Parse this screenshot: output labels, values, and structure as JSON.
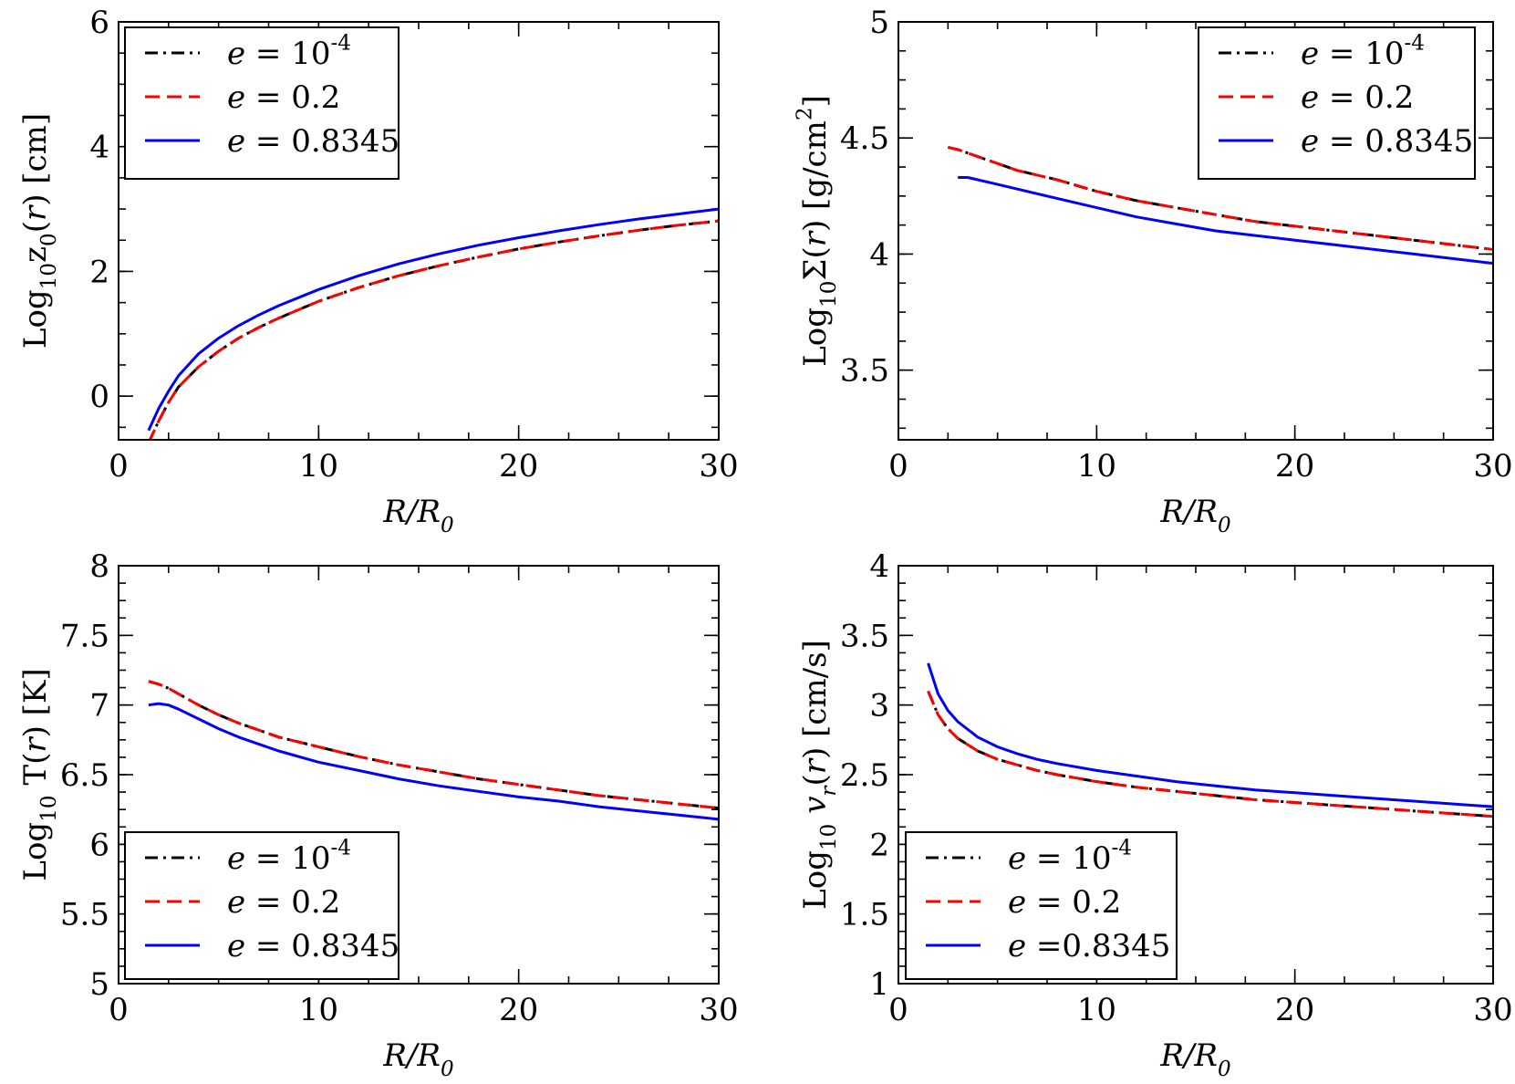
{
  "chart_data": [
    {
      "type": "line",
      "panel": "top-left",
      "xlabel": "R/R",
      "xlabel_sub": "0",
      "ylabel_parts": [
        [
          "Log",
          "n"
        ],
        [
          "10",
          "sub"
        ],
        [
          "z",
          "n"
        ],
        [
          "0",
          "sub"
        ],
        [
          "(",
          "n"
        ],
        [
          "r",
          "i"
        ],
        [
          ") [cm]",
          "n"
        ]
      ],
      "xlim": [
        0,
        30
      ],
      "ylim": [
        -0.7,
        6
      ],
      "xticks": [
        0,
        10,
        20,
        30
      ],
      "xtick_labels": [
        "0",
        "10",
        "20",
        "30"
      ],
      "yticks": [
        0,
        2,
        4,
        6
      ],
      "ytick_labels": [
        "0",
        "2",
        "4",
        "6"
      ],
      "legend_placement": "top-left",
      "series": [
        {
          "name": "e = 10^-4",
          "label_parts": [
            [
              "e",
              "i"
            ],
            [
              " = 10",
              "n"
            ],
            [
              "-4",
              "sup"
            ]
          ],
          "color": "#000000",
          "dash": "dashdot",
          "x": [
            1.5,
            2,
            2.5,
            3,
            4,
            5,
            6,
            7,
            8,
            10,
            12,
            14,
            16,
            18,
            20,
            22,
            24,
            26,
            28,
            30
          ],
          "y": [
            -0.75,
            -0.4,
            -0.1,
            0.15,
            0.47,
            0.72,
            0.93,
            1.1,
            1.25,
            1.52,
            1.74,
            1.93,
            2.09,
            2.23,
            2.36,
            2.47,
            2.57,
            2.66,
            2.74,
            2.81
          ]
        },
        {
          "name": "e = 0.2",
          "label_parts": [
            [
              "e",
              "i"
            ],
            [
              " = 0.2",
              "n"
            ]
          ],
          "color": "#ff0000",
          "dash": "dashed",
          "x": [
            1.5,
            2,
            2.5,
            3,
            4,
            5,
            6,
            7,
            8,
            10,
            12,
            14,
            16,
            18,
            20,
            22,
            24,
            26,
            28,
            30
          ],
          "y": [
            -0.75,
            -0.4,
            -0.1,
            0.15,
            0.47,
            0.72,
            0.93,
            1.1,
            1.25,
            1.52,
            1.74,
            1.93,
            2.09,
            2.23,
            2.36,
            2.47,
            2.57,
            2.66,
            2.74,
            2.81
          ]
        },
        {
          "name": "e = 0.8345",
          "label_parts": [
            [
              "e",
              "i"
            ],
            [
              " = 0.8345",
              "n"
            ]
          ],
          "color": "#0000ff",
          "dash": "solid",
          "x": [
            1.5,
            2,
            2.5,
            3,
            4,
            5,
            6,
            7,
            8,
            10,
            12,
            14,
            16,
            18,
            20,
            22,
            24,
            26,
            28,
            30
          ],
          "y": [
            -0.55,
            -0.2,
            0.08,
            0.33,
            0.68,
            0.93,
            1.13,
            1.3,
            1.45,
            1.71,
            1.93,
            2.12,
            2.28,
            2.42,
            2.54,
            2.65,
            2.75,
            2.84,
            2.92,
            3.0
          ]
        }
      ]
    },
    {
      "type": "line",
      "panel": "top-right",
      "xlabel": "R/R",
      "xlabel_sub": "0",
      "ylabel_parts": [
        [
          "Log",
          "n"
        ],
        [
          "10",
          "sub"
        ],
        [
          "Σ(",
          "n"
        ],
        [
          "r",
          "i"
        ],
        [
          ") [g/cm",
          "n"
        ],
        [
          "2",
          "sup"
        ],
        [
          "]",
          "n"
        ]
      ],
      "xlim": [
        0,
        30
      ],
      "ylim": [
        3.2,
        5
      ],
      "xticks": [
        0,
        10,
        20,
        30
      ],
      "xtick_labels": [
        "0",
        "10",
        "20",
        "30"
      ],
      "yticks": [
        3.5,
        4,
        4.5,
        5
      ],
      "ytick_labels": [
        "3.5",
        "4",
        "4.5",
        "5"
      ],
      "legend_placement": "top-right",
      "series": [
        {
          "name": "e = 10^-4",
          "label_parts": [
            [
              "e",
              "i"
            ],
            [
              " = 10",
              "n"
            ],
            [
              "-4",
              "sup"
            ]
          ],
          "color": "#000000",
          "dash": "dashdot",
          "x": [
            2.5,
            3,
            4,
            5,
            6,
            7,
            8,
            10,
            12,
            14,
            16,
            18,
            20,
            22,
            24,
            26,
            28,
            30
          ],
          "y": [
            4.46,
            4.45,
            4.42,
            4.39,
            4.36,
            4.34,
            4.32,
            4.27,
            4.23,
            4.2,
            4.17,
            4.14,
            4.12,
            4.1,
            4.08,
            4.06,
            4.04,
            4.02
          ]
        },
        {
          "name": "e = 0.2",
          "label_parts": [
            [
              "e",
              "i"
            ],
            [
              " = 0.2",
              "n"
            ]
          ],
          "color": "#ff0000",
          "dash": "dashed",
          "x": [
            2.5,
            3,
            4,
            5,
            6,
            7,
            8,
            10,
            12,
            14,
            16,
            18,
            20,
            22,
            24,
            26,
            28,
            30
          ],
          "y": [
            4.46,
            4.45,
            4.42,
            4.39,
            4.36,
            4.34,
            4.32,
            4.27,
            4.23,
            4.2,
            4.17,
            4.14,
            4.12,
            4.1,
            4.08,
            4.06,
            4.04,
            4.02
          ]
        },
        {
          "name": "e = 0.8345",
          "label_parts": [
            [
              "e",
              "i"
            ],
            [
              " = 0.8345",
              "n"
            ]
          ],
          "color": "#0000ff",
          "dash": "solid",
          "x": [
            3,
            3.5,
            4,
            5,
            6,
            7,
            8,
            10,
            12,
            14,
            16,
            18,
            20,
            22,
            24,
            26,
            28,
            30
          ],
          "y": [
            4.33,
            4.33,
            4.32,
            4.3,
            4.28,
            4.26,
            4.24,
            4.2,
            4.16,
            4.13,
            4.1,
            4.08,
            4.06,
            4.04,
            4.02,
            4.0,
            3.98,
            3.96
          ]
        }
      ]
    },
    {
      "type": "line",
      "panel": "bottom-left",
      "xlabel": "R/R",
      "xlabel_sub": "0",
      "ylabel_parts": [
        [
          "Log",
          "n"
        ],
        [
          "10",
          "sub"
        ],
        [
          " T(",
          "n"
        ],
        [
          "r",
          "i"
        ],
        [
          ") [K]",
          "n"
        ]
      ],
      "xlim": [
        0,
        30
      ],
      "ylim": [
        5,
        8
      ],
      "xticks": [
        0,
        10,
        20,
        30
      ],
      "xtick_labels": [
        "0",
        "10",
        "20",
        "30"
      ],
      "yticks": [
        5,
        5.5,
        6,
        6.5,
        7,
        7.5,
        8
      ],
      "ytick_labels": [
        "5",
        "5.5",
        "6",
        "6.5",
        "7",
        "7.5",
        "8"
      ],
      "legend_placement": "bottom-left",
      "series": [
        {
          "name": "e = 10^-4",
          "label_parts": [
            [
              "e",
              "i"
            ],
            [
              " = 10",
              "n"
            ],
            [
              "-4",
              "sup"
            ]
          ],
          "color": "#000000",
          "dash": "dashdot",
          "x": [
            1.5,
            2,
            2.5,
            3,
            4,
            5,
            6,
            7,
            8,
            10,
            12,
            14,
            16,
            18,
            20,
            22,
            24,
            26,
            28,
            30
          ],
          "y": [
            7.17,
            7.15,
            7.12,
            7.08,
            7.0,
            6.93,
            6.87,
            6.82,
            6.77,
            6.7,
            6.63,
            6.57,
            6.52,
            6.47,
            6.43,
            6.39,
            6.35,
            6.32,
            6.29,
            6.26
          ]
        },
        {
          "name": "e = 0.2",
          "label_parts": [
            [
              "e",
              "i"
            ],
            [
              " = 0.2",
              "n"
            ]
          ],
          "color": "#ff0000",
          "dash": "dashed",
          "x": [
            1.5,
            2,
            2.5,
            3,
            4,
            5,
            6,
            7,
            8,
            10,
            12,
            14,
            16,
            18,
            20,
            22,
            24,
            26,
            28,
            30
          ],
          "y": [
            7.17,
            7.15,
            7.12,
            7.08,
            7.0,
            6.93,
            6.87,
            6.82,
            6.77,
            6.7,
            6.63,
            6.57,
            6.52,
            6.47,
            6.43,
            6.39,
            6.35,
            6.32,
            6.29,
            6.26
          ]
        },
        {
          "name": "e = 0.8345",
          "label_parts": [
            [
              "e",
              "i"
            ],
            [
              " = 0.8345",
              "n"
            ]
          ],
          "color": "#0000ff",
          "dash": "solid",
          "x": [
            1.5,
            2,
            2.5,
            3,
            4,
            5,
            6,
            7,
            8,
            10,
            12,
            14,
            16,
            18,
            20,
            22,
            24,
            26,
            28,
            30
          ],
          "y": [
            7.0,
            7.01,
            7.0,
            6.97,
            6.9,
            6.83,
            6.77,
            6.72,
            6.67,
            6.59,
            6.53,
            6.47,
            6.42,
            6.38,
            6.34,
            6.31,
            6.27,
            6.24,
            6.21,
            6.18
          ]
        }
      ]
    },
    {
      "type": "line",
      "panel": "bottom-right",
      "xlabel": "R/R",
      "xlabel_sub": "0",
      "ylabel_parts": [
        [
          "Log",
          "n"
        ],
        [
          "10",
          "sub"
        ],
        [
          " ",
          "n"
        ],
        [
          "v",
          "i"
        ],
        [
          "r",
          "isub"
        ],
        [
          "(",
          "n"
        ],
        [
          "r",
          "i"
        ],
        [
          ") [cm/s]",
          "n"
        ]
      ],
      "xlim": [
        0,
        30
      ],
      "ylim": [
        1,
        4
      ],
      "xticks": [
        0,
        10,
        20,
        30
      ],
      "xtick_labels": [
        "0",
        "10",
        "20",
        "30"
      ],
      "yticks": [
        1,
        1.5,
        2,
        2.5,
        3,
        3.5,
        4
      ],
      "ytick_labels": [
        "1",
        "1.5",
        "2",
        "2.5",
        "3",
        "3.5",
        "4"
      ],
      "legend_placement": "bottom-left",
      "series": [
        {
          "name": "e = 10^-4",
          "label_parts": [
            [
              "e",
              "i"
            ],
            [
              " = 10",
              "n"
            ],
            [
              "-4",
              "sup"
            ]
          ],
          "color": "#000000",
          "dash": "dashdot",
          "x": [
            1.5,
            2,
            2.5,
            3,
            4,
            5,
            6,
            7,
            8,
            10,
            12,
            14,
            16,
            18,
            20,
            22,
            24,
            26,
            28,
            30
          ],
          "y": [
            3.1,
            2.93,
            2.83,
            2.76,
            2.67,
            2.61,
            2.57,
            2.53,
            2.5,
            2.45,
            2.41,
            2.38,
            2.35,
            2.32,
            2.3,
            2.28,
            2.26,
            2.24,
            2.22,
            2.2
          ]
        },
        {
          "name": "e = 0.2",
          "label_parts": [
            [
              "e",
              "i"
            ],
            [
              " = 0.2",
              "n"
            ]
          ],
          "color": "#ff0000",
          "dash": "dashed",
          "x": [
            1.5,
            2,
            2.5,
            3,
            4,
            5,
            6,
            7,
            8,
            10,
            12,
            14,
            16,
            18,
            20,
            22,
            24,
            26,
            28,
            30
          ],
          "y": [
            3.1,
            2.93,
            2.83,
            2.76,
            2.67,
            2.61,
            2.57,
            2.53,
            2.5,
            2.45,
            2.41,
            2.38,
            2.35,
            2.32,
            2.3,
            2.28,
            2.26,
            2.24,
            2.22,
            2.2
          ]
        },
        {
          "name": "e =0.8345",
          "label_parts": [
            [
              "e",
              "i"
            ],
            [
              " =0.8345",
              "n"
            ]
          ],
          "color": "#0000ff",
          "dash": "solid",
          "x": [
            1.5,
            2,
            2.5,
            3,
            4,
            5,
            6,
            7,
            8,
            10,
            12,
            14,
            16,
            18,
            20,
            22,
            24,
            26,
            28,
            30
          ],
          "y": [
            3.3,
            3.08,
            2.96,
            2.88,
            2.77,
            2.7,
            2.65,
            2.61,
            2.58,
            2.53,
            2.49,
            2.45,
            2.42,
            2.39,
            2.37,
            2.35,
            2.33,
            2.31,
            2.29,
            2.27
          ]
        }
      ]
    }
  ]
}
